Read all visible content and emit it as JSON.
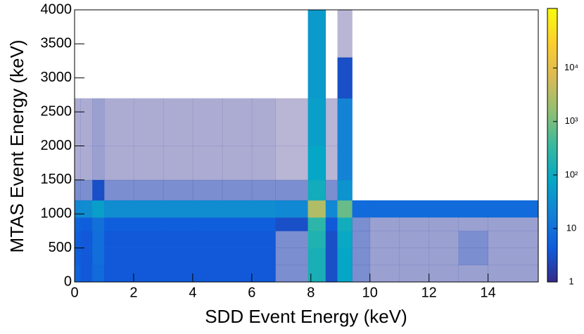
{
  "chart_data": {
    "type": "heatmap",
    "xlabel": "SDD Event Energy (keV)",
    "ylabel": "MTAS Event Energy (keV)",
    "xlim": [
      0,
      15.7
    ],
    "xticks": [
      0,
      2,
      4,
      6,
      8,
      10,
      12,
      14
    ],
    "ylim": [
      0,
      4000
    ],
    "yticks": [
      0,
      500,
      1000,
      1500,
      2000,
      2500,
      3000,
      3500,
      4000
    ],
    "xbins": [
      0,
      0.2,
      0.6,
      1.0,
      2,
      3,
      4,
      5,
      6,
      6.8,
      7.9,
      8.5,
      8.9,
      9.4,
      10,
      11,
      12,
      13,
      14,
      15.7
    ],
    "ybins": [
      0,
      250,
      500,
      750,
      950,
      1200,
      1500,
      2000,
      2700,
      3300,
      4000
    ],
    "z": [
      [
        6,
        4,
        8,
        4,
        4,
        4,
        4,
        4,
        4,
        2,
        150,
        3,
        80,
        2,
        1.5,
        1.5,
        1.5,
        1.5,
        1.5
      ],
      [
        5,
        4,
        9,
        4,
        4,
        4,
        4,
        4,
        4,
        2,
        150,
        3,
        80,
        2,
        1.5,
        1.5,
        1.5,
        2,
        1.5
      ],
      [
        5,
        4,
        9,
        4,
        4,
        4,
        4,
        4,
        4,
        2,
        180,
        3,
        90,
        2,
        1.5,
        1.5,
        1.5,
        2,
        1.5
      ],
      [
        6,
        5,
        10,
        5,
        5,
        5,
        5,
        5,
        5,
        3,
        250,
        4,
        120,
        2,
        1.5,
        1.5,
        1.5,
        1.5,
        1.5
      ],
      [
        25,
        30,
        60,
        30,
        30,
        30,
        30,
        30,
        30,
        25,
        3000,
        25,
        800,
        8,
        8,
        8,
        8,
        8,
        8
      ],
      [
        2,
        2,
        3,
        2,
        2,
        2,
        2,
        2,
        2,
        2,
        120,
        2,
        40,
        0,
        0,
        0,
        0,
        0,
        0
      ],
      [
        1.2,
        1.2,
        1.5,
        1.2,
        1.2,
        1.2,
        1.2,
        1.2,
        1.2,
        1,
        80,
        1,
        20,
        0,
        0,
        0,
        0,
        0,
        0
      ],
      [
        1.2,
        1.2,
        1.5,
        1.2,
        1.2,
        1.2,
        1.2,
        1.2,
        1.2,
        1,
        60,
        1,
        20,
        0,
        0,
        0,
        0,
        0,
        0
      ],
      [
        0,
        0,
        0,
        0,
        0,
        0,
        0,
        0,
        0,
        0,
        50,
        0,
        3,
        0,
        0,
        0,
        0,
        0,
        0
      ],
      [
        0,
        0,
        0,
        0,
        0,
        0,
        0,
        0,
        0,
        0,
        50,
        0,
        1,
        0,
        0,
        0,
        0,
        0,
        0
      ]
    ],
    "zlim": [
      1,
      130000
    ],
    "zlog": true,
    "zticks": [
      1,
      10,
      {
        "value": 100,
        "label": "10²"
      },
      {
        "value": 1000,
        "label": "10³"
      },
      {
        "value": 10000,
        "label": "10⁴"
      }
    ],
    "colormap": [
      "#352a87",
      "#0f5cdd",
      "#1481d6",
      "#06a7c6",
      "#38b99e",
      "#92bf73",
      "#d9ba56",
      "#fcce2e",
      "#f9fb0e"
    ]
  }
}
